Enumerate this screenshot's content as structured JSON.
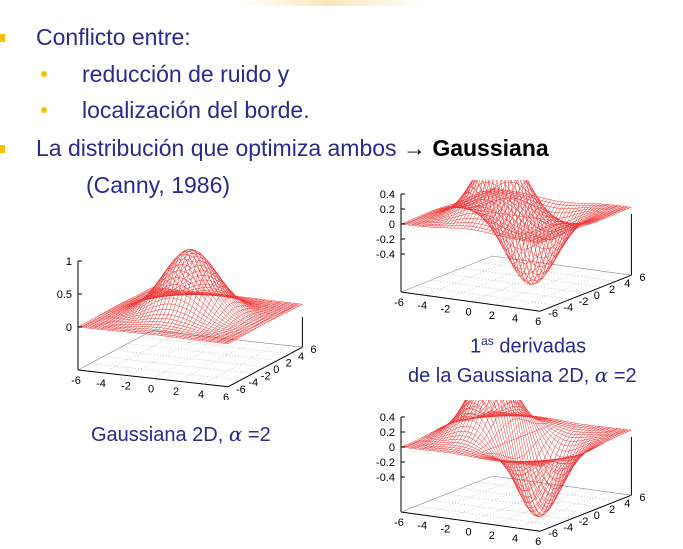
{
  "bullets": {
    "item1": "Conflicto entre:",
    "sub1": "reducción de ruido y",
    "sub2": "localización del borde.",
    "item2_prefix": "La distribución que optimiza ambos",
    "arrow": "→",
    "item2_strong": "Gaussiana",
    "citation": "(Canny, 1986)"
  },
  "captions": {
    "gauss_text": "Gaussiana 2D, ",
    "gauss_alpha": "α",
    "gauss_eq": " =2",
    "deriv_line1_num": "1",
    "deriv_line1_sup": "as",
    "deriv_line1_rest": " derivadas",
    "deriv_line2_text": "de la Gaussiana 2D, ",
    "deriv_alpha": "α",
    "deriv_eq": " =2"
  },
  "colors": {
    "accent": "#f2c200",
    "text": "#2a2a8f",
    "mesh": "#ee2020"
  },
  "chart_data": [
    {
      "type": "surface",
      "title": "",
      "z_ticks": [
        "1",
        "0.5",
        "0"
      ],
      "x_ticks": [
        "-6",
        "-4",
        "-2",
        "0",
        "2",
        "4",
        "6"
      ],
      "y_ticks": [
        "-6",
        "-4",
        "-2",
        "0",
        "2",
        "4",
        "6"
      ],
      "x_range": [
        -6,
        6
      ],
      "y_range": [
        -6,
        6
      ],
      "z_range": [
        0,
        1
      ],
      "function": "gaussian_2d",
      "sigma": 2
    },
    {
      "type": "surface",
      "title": "",
      "z_ticks": [
        "0.4",
        "0.2",
        "0",
        "-0.2",
        "-0.4"
      ],
      "x_ticks": [
        "-6",
        "-4",
        "-2",
        "0",
        "2",
        "4",
        "6"
      ],
      "y_ticks": [
        "-6",
        "-4",
        "-2",
        "0",
        "2",
        "4",
        "6"
      ],
      "x_range": [
        -6,
        6
      ],
      "y_range": [
        -6,
        6
      ],
      "z_range": [
        -0.4,
        0.4
      ],
      "function": "gaussian_derivative_y",
      "sigma": 2
    },
    {
      "type": "surface",
      "title": "",
      "z_ticks": [
        "0.4",
        "0.2",
        "0",
        "-0.2",
        "-0.4"
      ],
      "x_ticks": [
        "-6",
        "-4",
        "-2",
        "0",
        "2",
        "4",
        "6"
      ],
      "y_ticks": [
        "-6",
        "-4",
        "-2",
        "0",
        "2",
        "4",
        "6"
      ],
      "x_range": [
        -6,
        6
      ],
      "y_range": [
        -6,
        6
      ],
      "z_range": [
        -0.4,
        0.4
      ],
      "function": "gaussian_derivative_x",
      "sigma": 2
    }
  ]
}
